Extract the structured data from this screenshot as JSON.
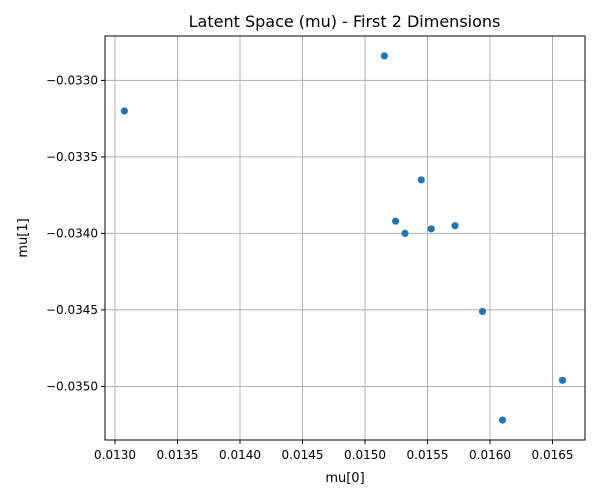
{
  "chart_data": {
    "type": "scatter",
    "title": "Latent Space (mu) - First 2 Dimensions",
    "xlabel": "mu[0]",
    "ylabel": "mu[1]",
    "xlim": [
      0.01292,
      0.01676
    ],
    "ylim": [
      -0.03535,
      -0.03271
    ],
    "xticks": [
      0.013,
      0.0135,
      0.014,
      0.0145,
      0.015,
      0.0155,
      0.016,
      0.0165
    ],
    "xtick_labels": [
      "0.0130",
      "0.0135",
      "0.0140",
      "0.0145",
      "0.0150",
      "0.0155",
      "0.0160",
      "0.0165"
    ],
    "yticks": [
      -0.033,
      -0.0335,
      -0.034,
      -0.0345,
      -0.035
    ],
    "ytick_labels": [
      "−0.0330",
      "−0.0335",
      "−0.0340",
      "−0.0345",
      "−0.0350"
    ],
    "grid": true,
    "marker_color": "#1f77b4",
    "points": [
      {
        "x": 0.013075,
        "y": -0.0332
      },
      {
        "x": 0.015155,
        "y": -0.03284
      },
      {
        "x": 0.01545,
        "y": -0.03365
      },
      {
        "x": 0.015245,
        "y": -0.03392
      },
      {
        "x": 0.01532,
        "y": -0.034
      },
      {
        "x": 0.01553,
        "y": -0.03397
      },
      {
        "x": 0.01572,
        "y": -0.03395
      },
      {
        "x": 0.01594,
        "y": -0.03451
      },
      {
        "x": 0.01658,
        "y": -0.03496
      },
      {
        "x": 0.0161,
        "y": -0.03522
      }
    ]
  }
}
